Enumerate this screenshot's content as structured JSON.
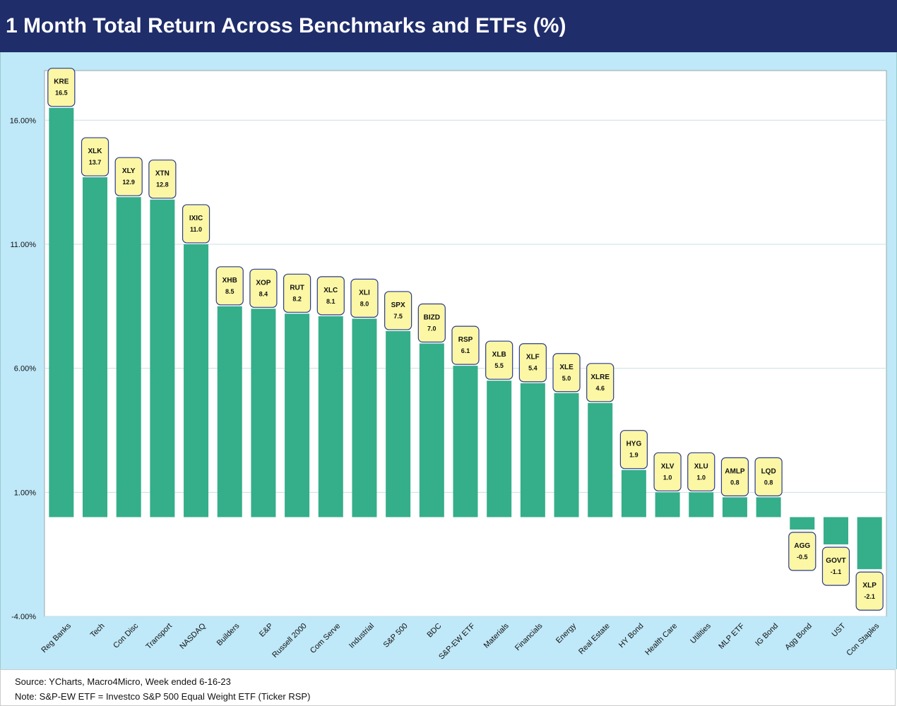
{
  "title": "1 Month Total Return Across Benchmarks and ETFs (%)",
  "footnotes": {
    "source": "Source: YCharts, Macro4Micro, Week ended 6-16-23",
    "note": "Note: S&P-EW ETF = Investco S&P 500 Equal Weight ETF (Ticker RSP)"
  },
  "colors": {
    "bar": "#35ae8a",
    "label_box": "#fbf7a5",
    "label_border": "#2b3a8c",
    "title_bg": "#1f2d6b",
    "panel_bg": "#bfe8f8"
  },
  "chart_data": {
    "type": "bar",
    "title": "1 Month Total Return Across Benchmarks and ETFs (%)",
    "xlabel": "",
    "ylabel": "",
    "ylim": [
      -4,
      18
    ],
    "yticks": [
      -4,
      1,
      6,
      11,
      16
    ],
    "ytick_labels": [
      "-4.00%",
      "1.00%",
      "6.00%",
      "11.00%",
      "16.00%"
    ],
    "grid": true,
    "categories": [
      "Reg Banks",
      "Tech",
      "Con Disc",
      "Transport",
      "NASDAQ",
      "Builders",
      "E&P",
      "Russell 2000",
      "Com Serve",
      "Industrial",
      "S&P 500",
      "BDC",
      "S&P-EW ETF",
      "Materials",
      "Financials",
      "Energy",
      "Real Estate",
      "HY Bond",
      "Health Care",
      "Utilities",
      "MLP ETF",
      "IG Bond",
      "Agg Bond",
      "UST",
      "Con Staples"
    ],
    "tickers": [
      "KRE",
      "XLK",
      "XLY",
      "XTN",
      "IXIC",
      "XHB",
      "XOP",
      "RUT",
      "XLC",
      "XLI",
      "SPX",
      "BIZD",
      "RSP",
      "XLB",
      "XLF",
      "XLE",
      "XLRE",
      "HYG",
      "XLV",
      "XLU",
      "AMLP",
      "LQD",
      "AGG",
      "GOVT",
      "XLP"
    ],
    "values": [
      16.5,
      13.7,
      12.9,
      12.8,
      11.0,
      8.5,
      8.4,
      8.2,
      8.1,
      8.0,
      7.5,
      7.0,
      6.1,
      5.5,
      5.4,
      5.0,
      4.6,
      1.9,
      1.0,
      1.0,
      0.8,
      0.8,
      -0.5,
      -1.1,
      -2.1
    ],
    "value_labels": [
      "16.5",
      "13.7",
      "12.9",
      "12.8",
      "11.0",
      "8.5",
      "8.4",
      "8.2",
      "8.1",
      "8.0",
      "7.5",
      "7.0",
      "6.1",
      "5.5",
      "5.4",
      "5.0",
      "4.6",
      "1.9",
      "1.0",
      "1.0",
      "0.8",
      "0.8",
      "-0.5",
      "-1.1",
      "-2.1"
    ]
  }
}
